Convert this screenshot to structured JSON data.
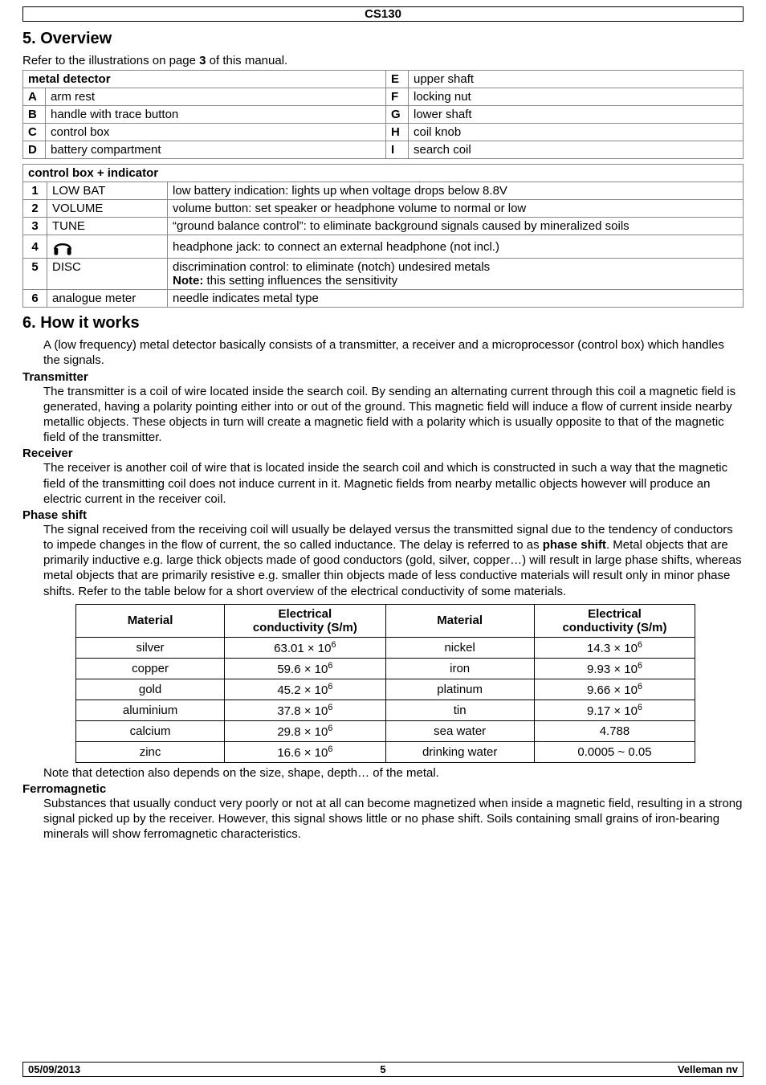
{
  "header": {
    "code": "CS130"
  },
  "section5": {
    "title": "5. Overview",
    "intro_pre": "Refer to the illustrations on page ",
    "intro_page": "3",
    "intro_post": " of this manual.",
    "parts_title_left": "metal detector",
    "parts": [
      {
        "l_key": "A",
        "l_val": "arm rest",
        "r_key": "F",
        "r_val": "locking nut"
      },
      {
        "l_key": "B",
        "l_val": "handle with trace button",
        "r_key": "G",
        "r_val": "lower shaft"
      },
      {
        "l_key": "C",
        "l_val": "control box",
        "r_key": "H",
        "r_val": "coil knob"
      },
      {
        "l_key": "D",
        "l_val": "battery compartment",
        "r_key": "I",
        "r_val": "search coil"
      }
    ],
    "parts_extra": {
      "r_key": "E",
      "r_val": "upper shaft"
    },
    "indicator_title": "control box + indicator",
    "indicator_rows": [
      {
        "n": "1",
        "label": "LOW BAT",
        "desc": "low battery indication: lights up when voltage drops below 8.8V"
      },
      {
        "n": "2",
        "label": "VOLUME",
        "desc": "volume button: set speaker or headphone volume to normal or low"
      },
      {
        "n": "3",
        "label": "TUNE",
        "desc": "“ground balance control”: to eliminate background signals caused by mineralized soils"
      },
      {
        "n": "4",
        "label_is_icon": true,
        "icon_name": "headphone-icon",
        "desc": "headphone jack: to connect an external headphone (not incl.)"
      },
      {
        "n": "5",
        "label": "DISC",
        "desc_pre": "discrimination control: to eliminate (notch) undesired metals",
        "desc_note_label": "Note:",
        "desc_note_rest": " this setting influences the sensitivity"
      },
      {
        "n": "6",
        "label": "analogue meter",
        "desc": "needle indicates metal type"
      }
    ]
  },
  "section6": {
    "title": "6. How it works",
    "intro": "A (low frequency) metal detector basically consists of a transmitter, a receiver and a microprocessor (control box) which handles the signals.",
    "blocks": [
      {
        "head": "Transmitter",
        "body": "The transmitter is a coil of wire located inside the search coil. By sending an alternating current through this coil a magnetic field is generated, having a polarity pointing either into or out of the ground. This magnetic field will induce a flow of current inside nearby metallic objects. These objects in turn will create a magnetic field with a polarity which is usually opposite to that of the magnetic field of the transmitter."
      },
      {
        "head": "Receiver",
        "body": "The receiver is another coil of wire that is located inside the search coil and which is constructed in such a way that the magnetic field of the transmitting coil does not induce current in it. Magnetic fields from nearby metallic objects however will produce an electric current in the receiver coil."
      }
    ],
    "phase": {
      "head": "Phase shift",
      "body1": "The signal received from the receiving coil will usually be delayed versus the transmitted signal due to the tendency of conductors to impede changes in the flow of current, the so called inductance. The delay is referred to as ",
      "bold": "phase shift",
      "body2": ". Metal objects that are primarily inductive e.g. large thick objects made of good conductors (gold, silver, copper…) will result in large phase shifts, whereas metal objects that are primarily resistive e.g. smaller thin objects made of less conductive materials will result only in minor phase shifts. Refer to the table below for a short overview of the electrical conductivity of some materials."
    },
    "materials": {
      "headers": {
        "mat": "Material",
        "cond": "Electrical\nconductivity (S/m)"
      },
      "rows": [
        {
          "m1": "silver",
          "c1": {
            "base": "63.01",
            "exp": "6"
          },
          "m2": "nickel",
          "c2": {
            "base": "14.3",
            "exp": "6"
          }
        },
        {
          "m1": "copper",
          "c1": {
            "base": "59.6",
            "exp": "6"
          },
          "m2": "iron",
          "c2": {
            "base": "9.93",
            "exp": "6"
          }
        },
        {
          "m1": "gold",
          "c1": {
            "base": "45.2",
            "exp": "6"
          },
          "m2": "platinum",
          "c2": {
            "base": "9.66",
            "exp": "6"
          }
        },
        {
          "m1": "aluminium",
          "c1": {
            "base": "37.8",
            "exp": "6"
          },
          "m2": "tin",
          "c2": {
            "base": "9.17",
            "exp": "6"
          }
        },
        {
          "m1": "calcium",
          "c1": {
            "base": "29.8",
            "exp": "6"
          },
          "m2": "sea water",
          "c2_plain": "4.788"
        },
        {
          "m1": "zinc",
          "c1": {
            "base": "16.6",
            "exp": "6"
          },
          "m2": "drinking water",
          "c2_plain": "0.0005  ~  0.05"
        }
      ],
      "note": "Note that detection also depends on the size, shape, depth… of the metal."
    },
    "ferro": {
      "head": "Ferromagnetic",
      "body": "Substances that usually conduct very poorly or not at all can become magnetized when inside a magnetic field, resulting in a strong signal picked up by the receiver. However, this signal shows little or no phase shift. Soils containing small grains of iron-bearing minerals will show ferromagnetic characteristics."
    }
  },
  "footer": {
    "date": "05/09/2013",
    "page": "5",
    "company": "Velleman nv"
  }
}
